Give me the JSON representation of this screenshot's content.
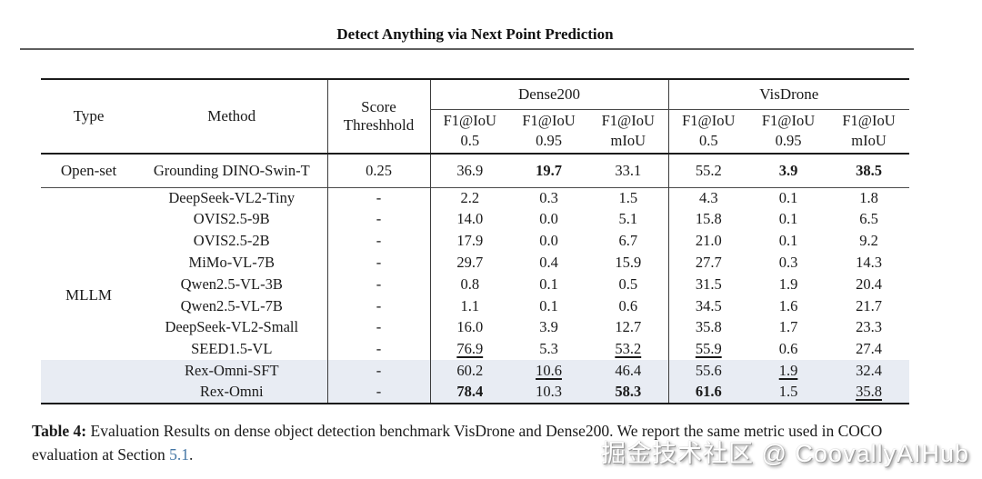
{
  "page": {
    "title": "Detect Anything via Next Point Prediction",
    "watermark": "掘金技术社区 @ CoovallyAIHub"
  },
  "colors": {
    "highlight_row": "#e8ecf3",
    "link_blue": "#4577a5",
    "rule_dark": "#1c1c1c"
  },
  "table": {
    "headers": {
      "type": "Type",
      "method": "Method",
      "score_line1": "Score",
      "score_line2": "Threshhold",
      "group1": "Dense200",
      "group2": "VisDrone",
      "metrics": [
        {
          "line1": "F1@IoU",
          "line2": "0.5"
        },
        {
          "line1": "F1@IoU",
          "line2": "0.95"
        },
        {
          "line1": "F1@IoU",
          "line2": "mIoU"
        },
        {
          "line1": "F1@IoU",
          "line2": "0.5"
        },
        {
          "line1": "F1@IoU",
          "line2": "0.95"
        },
        {
          "line1": "F1@IoU",
          "line2": "mIoU"
        }
      ]
    },
    "sections": [
      {
        "type_label": "Open-set",
        "rows": [
          {
            "method": "Grounding DINO-Swin-T",
            "score": "0.25",
            "highlight": false,
            "cells": [
              {
                "v": "36.9"
              },
              {
                "v": "19.7",
                "s": "b"
              },
              {
                "v": "33.1"
              },
              {
                "v": "55.2"
              },
              {
                "v": "3.9",
                "s": "b"
              },
              {
                "v": "38.5",
                "s": "b"
              }
            ]
          }
        ]
      },
      {
        "type_label": "MLLM",
        "rows": [
          {
            "method": "DeepSeek-VL2-Tiny",
            "score": "-",
            "highlight": false,
            "cells": [
              {
                "v": "2.2"
              },
              {
                "v": "0.3"
              },
              {
                "v": "1.5"
              },
              {
                "v": "4.3"
              },
              {
                "v": "0.1"
              },
              {
                "v": "1.8"
              }
            ]
          },
          {
            "method": "OVIS2.5-9B",
            "score": "-",
            "highlight": false,
            "cells": [
              {
                "v": "14.0"
              },
              {
                "v": "0.0"
              },
              {
                "v": "5.1"
              },
              {
                "v": "15.8"
              },
              {
                "v": "0.1"
              },
              {
                "v": "6.5"
              }
            ]
          },
          {
            "method": "OVIS2.5-2B",
            "score": "-",
            "highlight": false,
            "cells": [
              {
                "v": "17.9"
              },
              {
                "v": "0.0"
              },
              {
                "v": "6.7"
              },
              {
                "v": "21.0"
              },
              {
                "v": "0.1"
              },
              {
                "v": "9.2"
              }
            ]
          },
          {
            "method": "MiMo-VL-7B",
            "score": "-",
            "highlight": false,
            "cells": [
              {
                "v": "29.7"
              },
              {
                "v": "0.4"
              },
              {
                "v": "15.9"
              },
              {
                "v": "27.7"
              },
              {
                "v": "0.3"
              },
              {
                "v": "14.3"
              }
            ]
          },
          {
            "method": "Qwen2.5-VL-3B",
            "score": "-",
            "highlight": false,
            "cells": [
              {
                "v": "0.8"
              },
              {
                "v": "0.1"
              },
              {
                "v": "0.5"
              },
              {
                "v": "31.5"
              },
              {
                "v": "1.9"
              },
              {
                "v": "20.4"
              }
            ]
          },
          {
            "method": "Qwen2.5-VL-7B",
            "score": "-",
            "highlight": false,
            "cells": [
              {
                "v": "1.1"
              },
              {
                "v": "0.1"
              },
              {
                "v": "0.6"
              },
              {
                "v": "34.5"
              },
              {
                "v": "1.6"
              },
              {
                "v": "21.7"
              }
            ]
          },
          {
            "method": "DeepSeek-VL2-Small",
            "score": "-",
            "highlight": false,
            "cells": [
              {
                "v": "16.0"
              },
              {
                "v": "3.9"
              },
              {
                "v": "12.7"
              },
              {
                "v": "35.8"
              },
              {
                "v": "1.7"
              },
              {
                "v": "23.3"
              }
            ]
          },
          {
            "method": "SEED1.5-VL",
            "score": "-",
            "highlight": false,
            "cells": [
              {
                "v": "76.9",
                "s": "u"
              },
              {
                "v": "5.3"
              },
              {
                "v": "53.2",
                "s": "u"
              },
              {
                "v": "55.9",
                "s": "u"
              },
              {
                "v": "0.6"
              },
              {
                "v": "27.4"
              }
            ]
          },
          {
            "method": "Rex-Omni-SFT",
            "score": "-",
            "highlight": true,
            "cells": [
              {
                "v": "60.2"
              },
              {
                "v": "10.6",
                "s": "u"
              },
              {
                "v": "46.4"
              },
              {
                "v": "55.6"
              },
              {
                "v": "1.9",
                "s": "u"
              },
              {
                "v": "32.4"
              }
            ]
          },
          {
            "method": "Rex-Omni",
            "score": "-",
            "highlight": true,
            "cells": [
              {
                "v": "78.4",
                "s": "b"
              },
              {
                "v": "10.3"
              },
              {
                "v": "58.3",
                "s": "b"
              },
              {
                "v": "61.6",
                "s": "b"
              },
              {
                "v": "1.5"
              },
              {
                "v": "35.8",
                "s": "u"
              }
            ]
          }
        ]
      }
    ]
  },
  "caption": {
    "label": "Table 4:",
    "text1": " Evaluation Results on dense object detection benchmark VisDrone and Dense200. We report the same metric used in COCO evaluation at Section ",
    "link": "5.1",
    "text2": "."
  }
}
